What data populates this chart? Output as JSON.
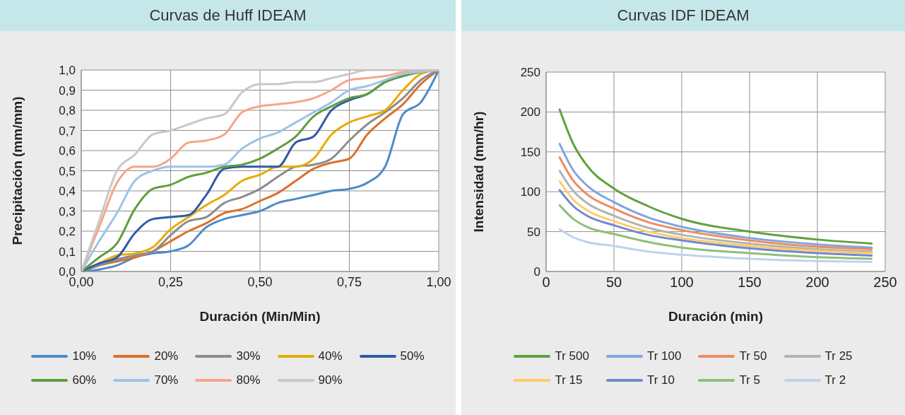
{
  "chart_data": [
    {
      "type": "line",
      "title": "Curvas de Huff IDEAM",
      "xlabel": "Duración (Min/Min)",
      "ylabel": "Precipitación (mm/mm)",
      "x": [
        0,
        0.05,
        0.1,
        0.15,
        0.2,
        0.25,
        0.3,
        0.35,
        0.4,
        0.45,
        0.5,
        0.55,
        0.6,
        0.65,
        0.7,
        0.75,
        0.8,
        0.85,
        0.9,
        0.95,
        1
      ],
      "xlim": [
        0,
        1
      ],
      "xticks": [
        {
          "value": 0,
          "label": "0,00"
        },
        {
          "value": 0.25,
          "label": "0,25"
        },
        {
          "value": 0.5,
          "label": "0,50"
        },
        {
          "value": 0.75,
          "label": "0,75"
        },
        {
          "value": 1,
          "label": "1,00"
        }
      ],
      "ylim": [
        0,
        1
      ],
      "yticks": [
        {
          "value": 0,
          "label": "0,0"
        },
        {
          "value": 0.1,
          "label": "0,1"
        },
        {
          "value": 0.2,
          "label": "0,2"
        },
        {
          "value": 0.3,
          "label": "0,3"
        },
        {
          "value": 0.4,
          "label": "0,4"
        },
        {
          "value": 0.5,
          "label": "0,5"
        },
        {
          "value": 0.6,
          "label": "0,6"
        },
        {
          "value": 0.7,
          "label": "0,7"
        },
        {
          "value": 0.8,
          "label": "0,8"
        },
        {
          "value": 0.9,
          "label": "0,9"
        },
        {
          "value": 1,
          "label": "1,0"
        }
      ],
      "grid": true,
      "legend": "bottom",
      "marker": "none",
      "series": [
        {
          "name": "10%",
          "color": "#4e8ac8",
          "values": [
            0,
            0.01,
            0.03,
            0.07,
            0.09,
            0.1,
            0.13,
            0.22,
            0.26,
            0.28,
            0.3,
            0.34,
            0.36,
            0.38,
            0.4,
            0.41,
            0.44,
            0.52,
            0.78,
            0.84,
            1
          ]
        },
        {
          "name": "20%",
          "color": "#d9712b",
          "values": [
            0,
            0.03,
            0.05,
            0.07,
            0.1,
            0.15,
            0.2,
            0.24,
            0.29,
            0.31,
            0.35,
            0.39,
            0.45,
            0.51,
            0.54,
            0.56,
            0.68,
            0.76,
            0.83,
            0.93,
            1
          ]
        },
        {
          "name": "30%",
          "color": "#8c8c8c",
          "values": [
            0,
            0.03,
            0.06,
            0.08,
            0.1,
            0.18,
            0.25,
            0.27,
            0.34,
            0.37,
            0.41,
            0.47,
            0.52,
            0.53,
            0.56,
            0.65,
            0.73,
            0.79,
            0.86,
            0.95,
            1
          ]
        },
        {
          "name": "40%",
          "color": "#e6ac00",
          "values": [
            0,
            0.04,
            0.08,
            0.09,
            0.12,
            0.21,
            0.27,
            0.33,
            0.38,
            0.45,
            0.48,
            0.52,
            0.52,
            0.56,
            0.68,
            0.74,
            0.77,
            0.8,
            0.9,
            0.98,
            1
          ]
        },
        {
          "name": "50%",
          "color": "#2f5ba8",
          "values": [
            0,
            0.04,
            0.07,
            0.19,
            0.26,
            0.27,
            0.28,
            0.38,
            0.51,
            0.52,
            0.52,
            0.52,
            0.64,
            0.67,
            0.8,
            0.85,
            0.88,
            0.94,
            0.97,
            0.99,
            1
          ]
        },
        {
          "name": "60%",
          "color": "#5f9e3c",
          "values": [
            0,
            0.07,
            0.14,
            0.31,
            0.41,
            0.43,
            0.47,
            0.49,
            0.52,
            0.53,
            0.56,
            0.61,
            0.67,
            0.77,
            0.82,
            0.86,
            0.88,
            0.94,
            0.97,
            0.99,
            1
          ]
        },
        {
          "name": "70%",
          "color": "#9dc3e6",
          "values": [
            0,
            0.15,
            0.29,
            0.45,
            0.5,
            0.52,
            0.52,
            0.52,
            0.53,
            0.61,
            0.66,
            0.69,
            0.74,
            0.79,
            0.84,
            0.9,
            0.92,
            0.95,
            0.98,
            0.99,
            1
          ]
        },
        {
          "name": "80%",
          "color": "#f4a58a",
          "values": [
            0,
            0.22,
            0.44,
            0.52,
            0.52,
            0.56,
            0.64,
            0.65,
            0.68,
            0.79,
            0.82,
            0.83,
            0.84,
            0.86,
            0.9,
            0.95,
            0.96,
            0.97,
            0.99,
            1,
            1
          ]
        },
        {
          "name": "90%",
          "color": "#c8c8c8",
          "values": [
            0,
            0.25,
            0.5,
            0.58,
            0.68,
            0.7,
            0.73,
            0.76,
            0.78,
            0.89,
            0.93,
            0.93,
            0.94,
            0.94,
            0.96,
            0.98,
            1,
            1,
            1,
            1,
            1
          ]
        }
      ]
    },
    {
      "type": "line",
      "title": "Curvas IDF IDEAM",
      "xlabel": "Duración (min)",
      "ylabel": "Intensidad (mm/hr)",
      "x": [
        10,
        20,
        30,
        50,
        75,
        100,
        150,
        200,
        240
      ],
      "xlim": [
        0,
        250
      ],
      "xticks": [
        0,
        50,
        100,
        150,
        200,
        250
      ],
      "ylim": [
        0,
        250
      ],
      "yticks": [
        0,
        50,
        100,
        150,
        200,
        250
      ],
      "grid": true,
      "legend": "bottom",
      "marker": "none",
      "series": [
        {
          "name": "Tr 500",
          "color": "#62a03e",
          "values": [
            203,
            160,
            133,
            104,
            82,
            66,
            50,
            40,
            35
          ]
        },
        {
          "name": "Tr 100",
          "color": "#7ea6e0",
          "values": [
            160,
            127,
            108,
            87,
            68,
            56,
            42,
            34,
            30
          ]
        },
        {
          "name": "Tr 50",
          "color": "#ee8b5f",
          "values": [
            143,
            114,
            97,
            79,
            62,
            52,
            39,
            31,
            28
          ]
        },
        {
          "name": "Tr 25",
          "color": "#b3b3b3",
          "values": [
            126,
            101,
            86,
            70,
            55,
            46,
            35,
            28,
            25
          ]
        },
        {
          "name": "Tr 15",
          "color": "#ffcc66",
          "values": [
            113,
            90,
            77,
            63,
            50,
            42,
            32,
            26,
            23
          ]
        },
        {
          "name": "Tr 10",
          "color": "#7088cf",
          "values": [
            102,
            82,
            70,
            58,
            46,
            39,
            29,
            23,
            20
          ]
        },
        {
          "name": "Tr 5",
          "color": "#8fbf78",
          "values": [
            83,
            66,
            56,
            47,
            37,
            30,
            23,
            18,
            16
          ]
        },
        {
          "name": "Tr 2",
          "color": "#bcd3ee",
          "values": [
            53,
            43,
            37,
            32,
            25,
            21,
            16,
            13,
            12
          ]
        }
      ]
    }
  ]
}
